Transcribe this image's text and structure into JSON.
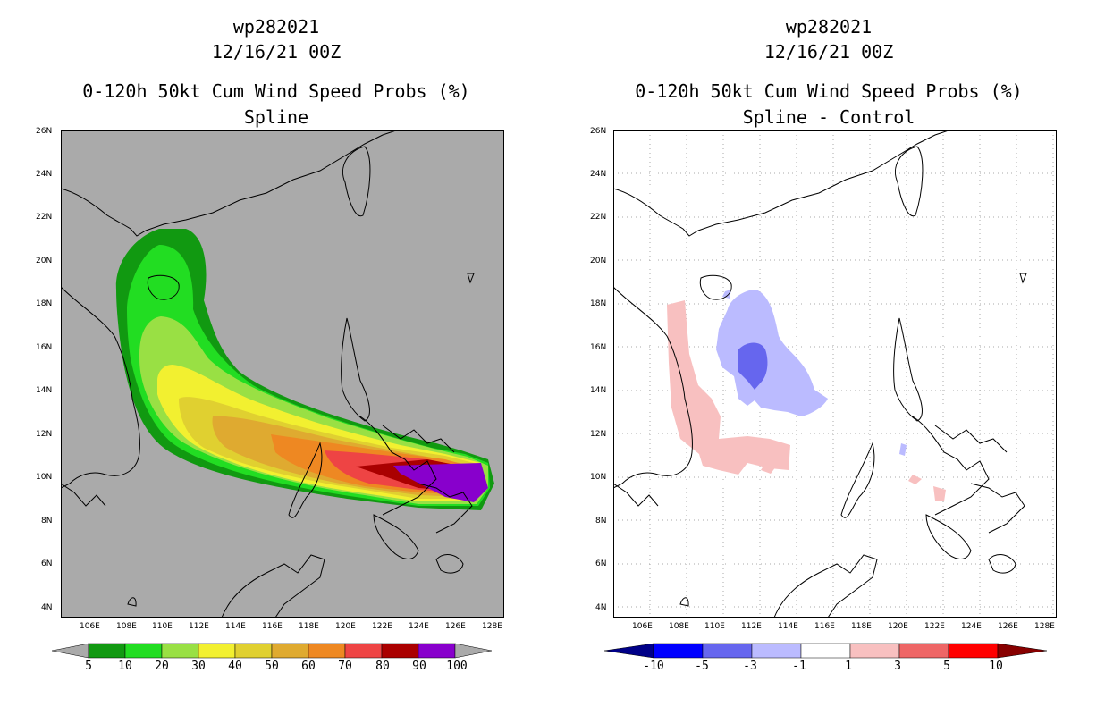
{
  "left_panel": {
    "title_line1": "wp282021",
    "title_line2": "12/16/21 00Z",
    "title_line3": "0-120h 50kt Cum Wind Speed Probs (%)",
    "title_line4": "Spline",
    "lat_labels": [
      "26N",
      "24N",
      "22N",
      "20N",
      "18N",
      "16N",
      "14N",
      "12N",
      "10N",
      "8N",
      "6N",
      "4N"
    ],
    "lon_labels": [
      "106E",
      "108E",
      "110E",
      "112E",
      "114E",
      "116E",
      "118E",
      "120E",
      "122E",
      "124E",
      "126E",
      "128E"
    ],
    "colorbar": {
      "labels": [
        "5",
        "10",
        "20",
        "30",
        "40",
        "50",
        "60",
        "70",
        "80",
        "90",
        "100"
      ],
      "colors": [
        "#119911",
        "#22dd22",
        "#99e044",
        "#f2f030",
        "#e0d030",
        "#dfaa30",
        "#ee8822",
        "#ee4444",
        "#aa0000",
        "#8800cc"
      ],
      "under_color": "#aaaaaa",
      "over_color": "#aaaaaa"
    }
  },
  "right_panel": {
    "title_line1": "wp282021",
    "title_line2": "12/16/21 00Z",
    "title_line3": "0-120h 50kt Cum Wind Speed Probs (%)",
    "title_line4": "Spline - Control",
    "lat_labels": [
      "26N",
      "24N",
      "22N",
      "20N",
      "18N",
      "16N",
      "14N",
      "12N",
      "10N",
      "8N",
      "6N",
      "4N"
    ],
    "lon_labels": [
      "106E",
      "108E",
      "110E",
      "112E",
      "114E",
      "116E",
      "118E",
      "120E",
      "122E",
      "124E",
      "126E",
      "128E"
    ],
    "colorbar": {
      "labels": [
        "-10",
        "-5",
        "-3",
        "-1",
        "1",
        "3",
        "5",
        "10"
      ],
      "colors": [
        "#0000ff",
        "#6666ee",
        "#bbbbff",
        "#ffffff",
        "#f8c0c0",
        "#ee6666",
        "#ff0000"
      ],
      "under_color": "#000088",
      "over_color": "#880000"
    }
  }
}
